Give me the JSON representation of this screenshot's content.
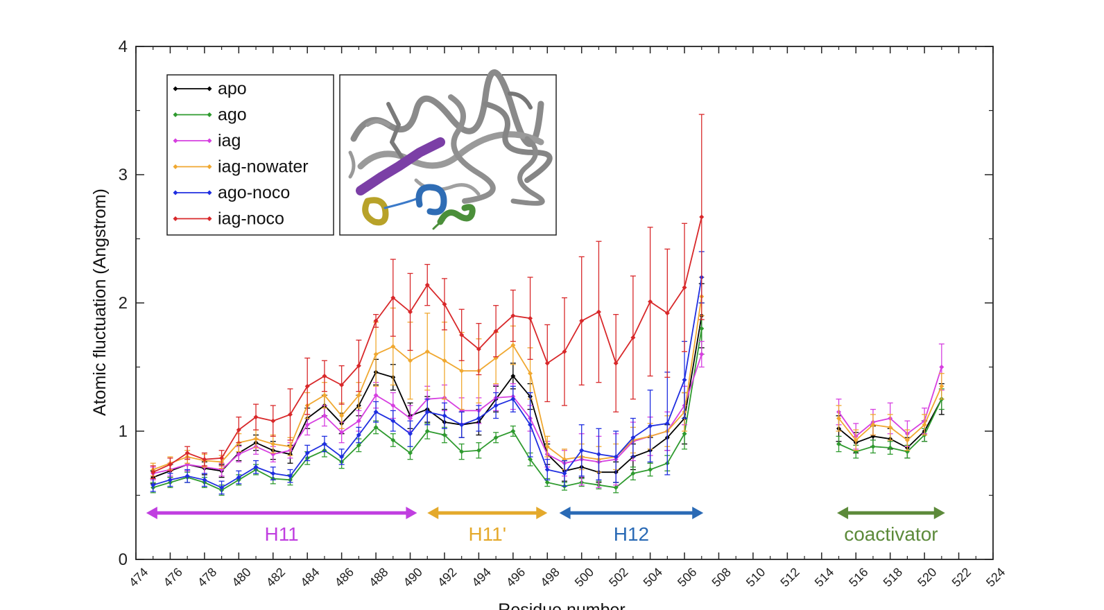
{
  "chart_data": {
    "type": "line",
    "title": "",
    "ylabel": "Atomic fluctuation (Angstrom)",
    "xlabel": "Residue number",
    "xlim": [
      474,
      524
    ],
    "ylim": [
      0,
      4
    ],
    "xticks": [
      474,
      476,
      478,
      480,
      482,
      484,
      486,
      488,
      490,
      492,
      494,
      496,
      498,
      500,
      502,
      504,
      506,
      508,
      510,
      512,
      514,
      516,
      518,
      520,
      522,
      524
    ],
    "xtick_labels": [
      "474",
      "476",
      "478",
      "480",
      "482",
      "484",
      "486",
      "488",
      "490",
      "492",
      "494",
      "496",
      "498",
      "500",
      "502",
      "504",
      "506",
      "508",
      "510",
      "512",
      "514",
      "516",
      "518",
      "520",
      "522",
      "524"
    ],
    "yticks": [
      0,
      1,
      2,
      3,
      4
    ],
    "ytick_labels": [
      "0",
      "1",
      "2",
      "3",
      "4"
    ],
    "grid": false,
    "legend_position": "top-left",
    "series": [
      {
        "name": "apo",
        "color": "#000000",
        "x": [
          475,
          476,
          477,
          478,
          479,
          480,
          481,
          482,
          483,
          484,
          485,
          486,
          487,
          488,
          489,
          490,
          491,
          492,
          493,
          494,
          495,
          496,
          497,
          498,
          499,
          500,
          501,
          502,
          503,
          504,
          505,
          506,
          507,
          515,
          516,
          517,
          518,
          519,
          520,
          521
        ],
        "y": [
          0.64,
          0.69,
          0.74,
          0.71,
          0.69,
          0.83,
          0.91,
          0.85,
          0.82,
          1.1,
          1.2,
          1.06,
          1.2,
          1.46,
          1.42,
          1.12,
          1.17,
          1.07,
          1.05,
          1.07,
          1.25,
          1.43,
          1.27,
          0.82,
          0.69,
          0.72,
          0.68,
          0.68,
          0.8,
          0.85,
          0.95,
          1.1,
          1.9,
          1.02,
          0.91,
          0.96,
          0.94,
          0.87,
          1.0,
          1.25
        ],
        "err": [
          0.05,
          0.05,
          0.05,
          0.05,
          0.05,
          0.06,
          0.06,
          0.07,
          0.07,
          0.08,
          0.08,
          0.08,
          0.08,
          0.1,
          0.1,
          0.1,
          0.1,
          0.1,
          0.1,
          0.1,
          0.1,
          0.1,
          0.1,
          0.08,
          0.08,
          0.08,
          0.08,
          0.08,
          0.1,
          0.1,
          0.1,
          0.2,
          0.25,
          0.1,
          0.08,
          0.08,
          0.08,
          0.08,
          0.08,
          0.12
        ]
      },
      {
        "name": "ago",
        "color": "#2e9a2e",
        "x": [
          475,
          476,
          477,
          478,
          479,
          480,
          481,
          482,
          483,
          484,
          485,
          486,
          487,
          488,
          489,
          490,
          491,
          492,
          493,
          494,
          495,
          496,
          497,
          498,
          499,
          500,
          501,
          502,
          503,
          504,
          505,
          506,
          507,
          515,
          516,
          517,
          518,
          519,
          520,
          521
        ],
        "y": [
          0.56,
          0.6,
          0.64,
          0.6,
          0.54,
          0.62,
          0.7,
          0.63,
          0.62,
          0.79,
          0.85,
          0.76,
          0.89,
          1.03,
          0.93,
          0.83,
          1.0,
          0.97,
          0.84,
          0.85,
          0.95,
          1.0,
          0.78,
          0.6,
          0.57,
          0.6,
          0.58,
          0.56,
          0.67,
          0.7,
          0.75,
          0.98,
          1.8,
          0.9,
          0.84,
          0.88,
          0.87,
          0.84,
          0.97,
          1.25
        ],
        "err": [
          0.04,
          0.04,
          0.04,
          0.04,
          0.04,
          0.04,
          0.04,
          0.04,
          0.04,
          0.05,
          0.05,
          0.05,
          0.05,
          0.05,
          0.05,
          0.05,
          0.06,
          0.06,
          0.06,
          0.06,
          0.04,
          0.04,
          0.05,
          0.03,
          0.03,
          0.03,
          0.03,
          0.04,
          0.05,
          0.05,
          0.06,
          0.12,
          0.2,
          0.06,
          0.05,
          0.05,
          0.05,
          0.05,
          0.05,
          0.08
        ]
      },
      {
        "name": "iag",
        "color": "#d63fe0",
        "x": [
          475,
          476,
          477,
          478,
          479,
          480,
          481,
          482,
          483,
          484,
          485,
          486,
          487,
          488,
          489,
          490,
          491,
          492,
          493,
          494,
          495,
          496,
          497,
          498,
          499,
          500,
          501,
          502,
          503,
          504,
          505,
          506,
          507,
          515,
          516,
          517,
          518,
          519,
          520,
          521
        ],
        "y": [
          0.67,
          0.7,
          0.74,
          0.72,
          0.7,
          0.82,
          0.88,
          0.82,
          0.85,
          1.05,
          1.12,
          0.99,
          1.08,
          1.28,
          1.2,
          1.1,
          1.25,
          1.26,
          1.16,
          1.16,
          1.26,
          1.27,
          1.1,
          0.82,
          0.75,
          0.78,
          0.76,
          0.78,
          0.92,
          0.96,
          1.0,
          1.2,
          1.6,
          1.15,
          0.96,
          1.07,
          1.1,
          0.98,
          1.08,
          1.5
        ],
        "err": [
          0.05,
          0.05,
          0.05,
          0.05,
          0.05,
          0.06,
          0.06,
          0.06,
          0.06,
          0.08,
          0.08,
          0.08,
          0.08,
          0.1,
          0.1,
          0.1,
          0.1,
          0.1,
          0.1,
          0.1,
          0.1,
          0.1,
          0.1,
          0.1,
          0.1,
          0.2,
          0.2,
          0.2,
          0.15,
          0.15,
          0.15,
          0.15,
          0.1,
          0.1,
          0.1,
          0.1,
          0.12,
          0.1,
          0.1,
          0.18
        ]
      },
      {
        "name": "iag-nowater",
        "color": "#f0a830",
        "x": [
          475,
          476,
          477,
          478,
          479,
          480,
          481,
          482,
          483,
          484,
          485,
          486,
          487,
          488,
          489,
          490,
          491,
          492,
          493,
          494,
          495,
          496,
          497,
          498,
          499,
          500,
          501,
          502,
          503,
          504,
          505,
          506,
          507,
          515,
          516,
          517,
          518,
          519,
          520,
          521
        ],
        "y": [
          0.7,
          0.75,
          0.8,
          0.77,
          0.76,
          0.91,
          0.94,
          0.9,
          0.88,
          1.2,
          1.28,
          1.12,
          1.28,
          1.6,
          1.66,
          1.55,
          1.62,
          1.55,
          1.47,
          1.47,
          1.57,
          1.67,
          1.45,
          0.88,
          0.78,
          0.8,
          0.78,
          0.8,
          0.93,
          0.96,
          1.0,
          1.15,
          2.05,
          1.1,
          0.93,
          1.05,
          1.03,
          0.93,
          1.05,
          1.35
        ],
        "err": [
          0.05,
          0.05,
          0.05,
          0.05,
          0.05,
          0.07,
          0.07,
          0.07,
          0.07,
          0.1,
          0.1,
          0.1,
          0.1,
          0.25,
          0.3,
          0.3,
          0.3,
          0.3,
          0.3,
          0.25,
          0.2,
          0.15,
          0.2,
          0.08,
          0.08,
          0.1,
          0.1,
          0.1,
          0.1,
          0.1,
          0.12,
          0.15,
          0.15,
          0.1,
          0.08,
          0.08,
          0.1,
          0.08,
          0.08,
          0.1
        ]
      },
      {
        "name": "ago-noco",
        "color": "#1f2ee0",
        "x": [
          475,
          476,
          477,
          478,
          479,
          480,
          481,
          482,
          483,
          484,
          485,
          486,
          487,
          488,
          489,
          490,
          491,
          492,
          493,
          494,
          495,
          496,
          497,
          498,
          499,
          500,
          501,
          502,
          503,
          504,
          505,
          506,
          507
        ],
        "y": [
          0.58,
          0.62,
          0.65,
          0.62,
          0.56,
          0.64,
          0.72,
          0.67,
          0.65,
          0.83,
          0.9,
          0.8,
          0.97,
          1.15,
          1.08,
          0.98,
          1.15,
          1.12,
          1.05,
          1.1,
          1.2,
          1.25,
          1.05,
          0.7,
          0.67,
          0.85,
          0.82,
          0.8,
          0.95,
          1.04,
          1.06,
          1.4,
          2.2
        ],
        "err": [
          0.05,
          0.05,
          0.05,
          0.05,
          0.05,
          0.05,
          0.05,
          0.05,
          0.05,
          0.06,
          0.06,
          0.06,
          0.06,
          0.08,
          0.08,
          0.1,
          0.1,
          0.1,
          0.1,
          0.1,
          0.1,
          0.1,
          0.25,
          0.08,
          0.1,
          0.2,
          0.2,
          0.2,
          0.15,
          0.28,
          0.4,
          0.3,
          0.2
        ]
      },
      {
        "name": "iag-noco",
        "color": "#d8282a",
        "x": [
          475,
          476,
          477,
          478,
          479,
          480,
          481,
          482,
          483,
          484,
          485,
          486,
          487,
          488,
          489,
          490,
          491,
          492,
          493,
          494,
          495,
          496,
          497,
          498,
          499,
          500,
          501,
          502,
          503,
          504,
          505,
          506,
          507
        ],
        "y": [
          0.68,
          0.74,
          0.83,
          0.78,
          0.79,
          1.01,
          1.11,
          1.08,
          1.13,
          1.35,
          1.43,
          1.36,
          1.51,
          1.86,
          2.04,
          1.93,
          2.14,
          1.99,
          1.75,
          1.64,
          1.78,
          1.9,
          1.88,
          1.53,
          1.62,
          1.86,
          1.93,
          1.53,
          1.73,
          2.01,
          1.92,
          2.12,
          2.67
        ],
        "err": [
          0.05,
          0.05,
          0.05,
          0.05,
          0.06,
          0.1,
          0.1,
          0.12,
          0.2,
          0.22,
          0.12,
          0.15,
          0.2,
          0.05,
          0.3,
          0.3,
          0.16,
          0.2,
          0.2,
          0.2,
          0.2,
          0.2,
          0.32,
          0.3,
          0.42,
          0.5,
          0.55,
          0.38,
          0.48,
          0.58,
          0.5,
          0.5,
          0.8
        ]
      }
    ],
    "region_labels": [
      {
        "text": "H11",
        "from": 474.6,
        "to": 490.4,
        "color": "#c03ee0"
      },
      {
        "text": "H11'",
        "from": 491.0,
        "to": 498.0,
        "color": "#e4a92b"
      },
      {
        "text": "H12",
        "from": 498.7,
        "to": 507.1,
        "color": "#2a6ab5"
      },
      {
        "text": "coactivator",
        "from": 514.9,
        "to": 521.2,
        "color": "#5c8a3a"
      }
    ]
  }
}
